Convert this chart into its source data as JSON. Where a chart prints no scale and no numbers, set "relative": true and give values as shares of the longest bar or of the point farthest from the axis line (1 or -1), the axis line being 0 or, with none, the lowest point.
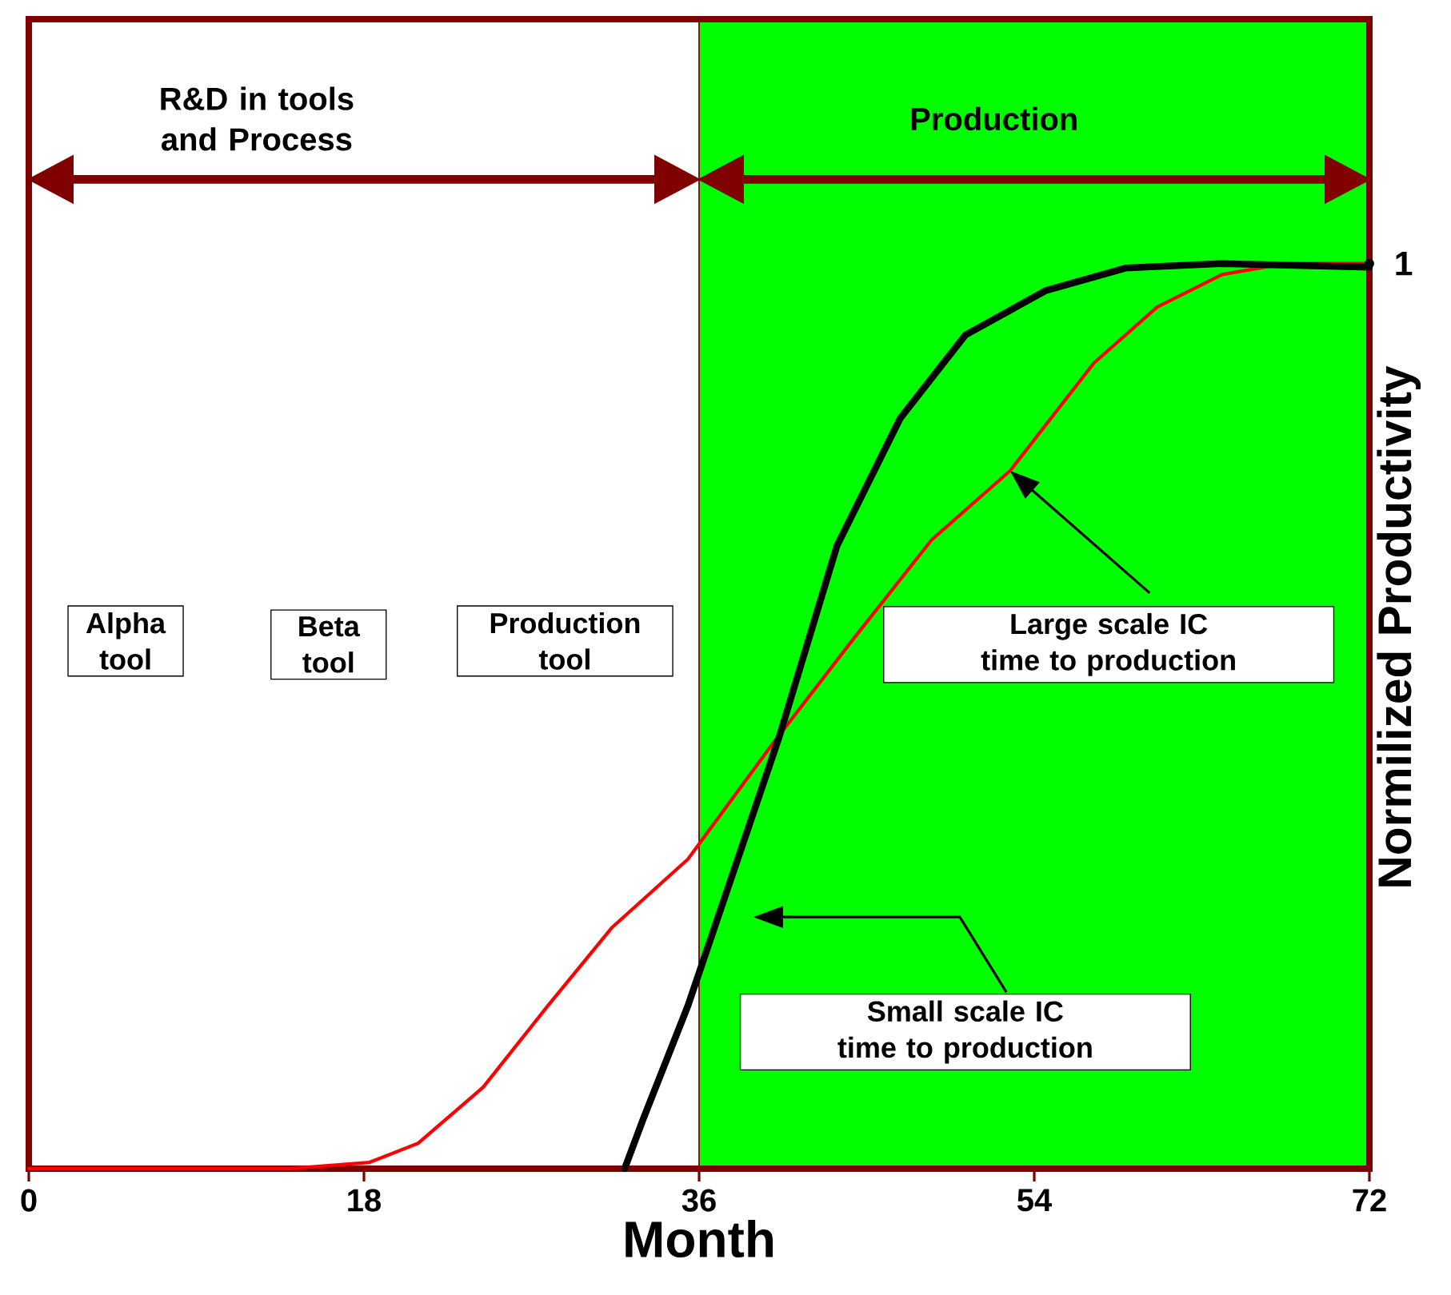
{
  "chart_data": {
    "type": "line",
    "relative": true,
    "xlabel": "Month",
    "ylabel": "Normilized Productivity",
    "xlim": [
      0,
      72
    ],
    "xticks": [
      0,
      18,
      36,
      54,
      72
    ],
    "marker": "none",
    "line_style": "solid",
    "series": [
      {
        "color": "#ff0000",
        "x": [
          0,
          14,
          18.3,
          20.9,
          24.4,
          27.8,
          31.3,
          35.4,
          39.9,
          44.2,
          48.5,
          52.7,
          57.2,
          60.6,
          64.1,
          67.5,
          72
        ],
        "values": [
          0,
          0,
          0.007,
          0.028,
          0.09,
          0.178,
          0.266,
          0.342,
          0.468,
          0.583,
          0.695,
          0.771,
          0.89,
          0.952,
          0.988,
          1.0,
          1.0
        ]
      },
      {
        "color": "#000000",
        "x": [
          32,
          33,
          35.4,
          40.3,
          43.4,
          46.8,
          50.3,
          54.6,
          58.9,
          64.1,
          72
        ],
        "values": [
          0,
          0.055,
          0.18,
          0.477,
          0.688,
          0.829,
          0.921,
          0.97,
          0.995,
          1.0,
          0.996
        ]
      }
    ],
    "bands": [
      {
        "axis": "x",
        "from": 0,
        "to": 36,
        "label": "R&D in tools and Process",
        "color": "#ffffff"
      },
      {
        "axis": "x",
        "from": 36,
        "to": 72,
        "label": "Production",
        "color": "#00ff00"
      }
    ],
    "annotations": [
      "Alpha tool",
      "Beta tool",
      "Production tool",
      "Large scale IC time to production",
      "Small scale IC time to production",
      {
        "text": "1",
        "x": 72,
        "y": 1
      }
    ]
  }
}
